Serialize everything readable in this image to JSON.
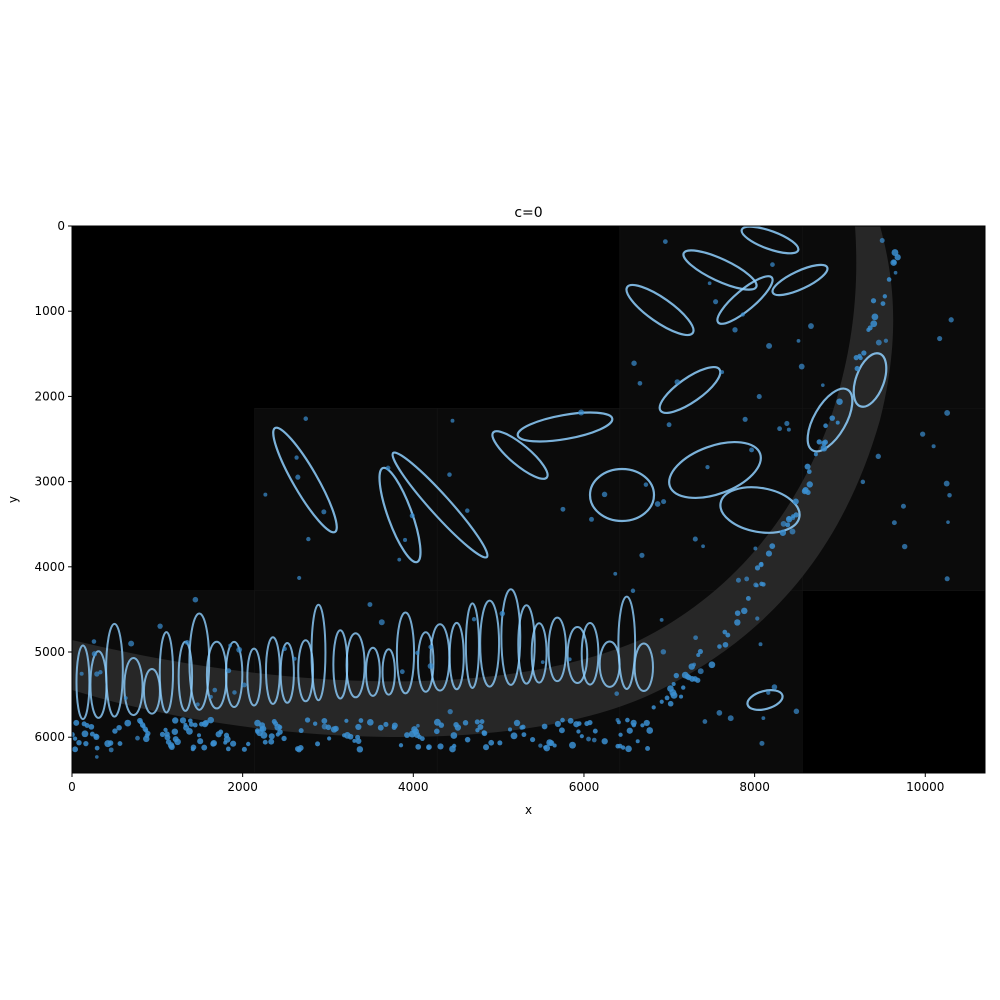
{
  "title": "c=0",
  "x_axis": {
    "label": "x",
    "range": [
      0,
      10700
    ],
    "ticks": [
      0,
      2000,
      4000,
      6000,
      8000,
      10000
    ]
  },
  "y_axis": {
    "label": "y",
    "range": [
      0,
      6420
    ],
    "inverted": true,
    "ticks": [
      0,
      1000,
      2000,
      3000,
      4000,
      5000,
      6000
    ]
  },
  "colors": {
    "background": "#000000",
    "tile": "#0b0b0b",
    "tissue": "#2a2a2a",
    "outline": "#8fd0ff",
    "nucleus": "#3b8fd1",
    "axes": "#000000"
  },
  "image": {
    "description_icon": "microscopy-fluorescence-image",
    "tiles": [
      {
        "x": 6420,
        "y": 0,
        "w": 2140,
        "h": 2140
      },
      {
        "x": 8560,
        "y": 0,
        "w": 2140,
        "h": 2140
      },
      {
        "x": 2140,
        "y": 2140,
        "w": 2140,
        "h": 2140
      },
      {
        "x": 4280,
        "y": 2140,
        "w": 2140,
        "h": 2140
      },
      {
        "x": 6420,
        "y": 2140,
        "w": 2140,
        "h": 2140
      },
      {
        "x": 8560,
        "y": 2140,
        "w": 2140,
        "h": 2140
      },
      {
        "x": 0,
        "y": 4280,
        "w": 2140,
        "h": 2140
      },
      {
        "x": 2140,
        "y": 4280,
        "w": 2140,
        "h": 2140
      },
      {
        "x": 4280,
        "y": 4280,
        "w": 2140,
        "h": 2140
      },
      {
        "x": 6420,
        "y": 4280,
        "w": 2140,
        "h": 2140
      }
    ]
  }
}
